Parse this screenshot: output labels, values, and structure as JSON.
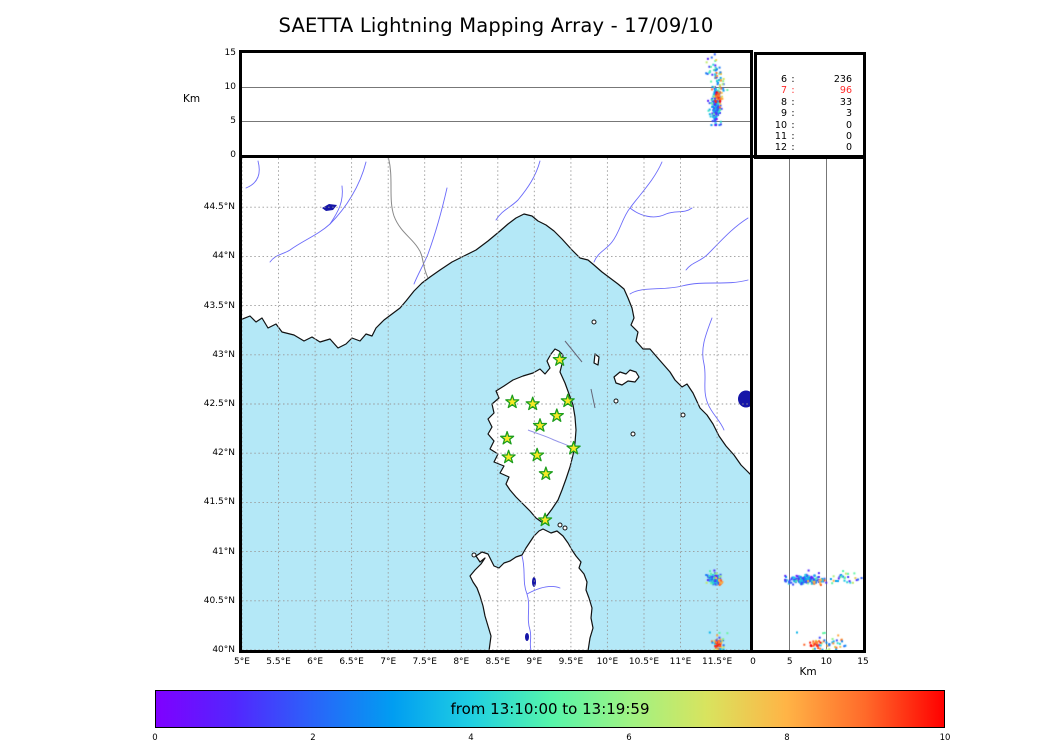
{
  "title": "SAETTA Lightning Mapping Array - 17/09/10",
  "colors": {
    "sea": "#b4e8f7",
    "land": "#ffffff",
    "coast": "#111111",
    "river": "#6b6bfa",
    "corsica_river": "#9595e8",
    "admin_border": "#888888",
    "lake": "#1515a8",
    "grid_dashed": "#999999",
    "grid_solid": "#777777",
    "star_fill": "#f7e926",
    "star_edge": "#1d9e1d",
    "stats_highlight": "#ff2a2a"
  },
  "top_panel": {
    "ylabel": "Km",
    "yticks": [
      "15",
      "10",
      "5",
      "0"
    ],
    "ylim": [
      0,
      15
    ]
  },
  "right_panel": {
    "xlabel": "Km",
    "xticks": [
      "0",
      "5",
      "10",
      "15"
    ],
    "xlim": [
      0,
      15
    ]
  },
  "stats_panel": {
    "rows": [
      {
        "label": "6",
        "value": "236"
      },
      {
        "label": "7",
        "value": "96"
      },
      {
        "label": "8",
        "value": "33"
      },
      {
        "label": "9",
        "value": "3"
      },
      {
        "label": "10",
        "value": "0"
      },
      {
        "label": "11",
        "value": "0"
      },
      {
        "label": "12",
        "value": "0"
      }
    ],
    "highlight_row": 1
  },
  "map": {
    "lon_ticks": [
      "5°E",
      "5.5°E",
      "6°E",
      "6.5°E",
      "7°E",
      "7.5°E",
      "8°E",
      "8.5°E",
      "9°E",
      "9.5°E",
      "10°E",
      "10.5°E",
      "11°E",
      "11.5°E"
    ],
    "lat_ticks": [
      "44.5°N",
      "44°N",
      "43.5°N",
      "43°N",
      "42.5°N",
      "42°N",
      "41.5°N",
      "41°N",
      "40.5°N",
      "40°N"
    ],
    "lon_lim": [
      5,
      11.955
    ],
    "lat_lim": [
      40,
      45
    ]
  },
  "colorbar": {
    "label": "from 13:10:00 to 13:19:59",
    "ticks": [
      "0",
      "2",
      "4",
      "6",
      "8",
      "10"
    ],
    "min": 0,
    "max": 10,
    "gradient": [
      [
        0.0,
        "#7f00ff"
      ],
      [
        0.1,
        "#5326fe"
      ],
      [
        0.2,
        "#2a64f9"
      ],
      [
        0.3,
        "#019df1"
      ],
      [
        0.4,
        "#1fcfe2"
      ],
      [
        0.5,
        "#55f5ab"
      ],
      [
        0.6,
        "#9ef384"
      ],
      [
        0.7,
        "#d9e35e"
      ],
      [
        0.8,
        "#ffb446"
      ],
      [
        0.9,
        "#ff6a2a"
      ],
      [
        1.0,
        "#ff0000"
      ]
    ]
  },
  "chart_data": {
    "type": "scatter",
    "title": "SAETTA Lightning Mapping Array - 17/09/10",
    "panels": {
      "top": "longitude vs altitude (0-15 Km)",
      "main": "longitude vs latitude map",
      "right": "altitude (0-15 Km) vs latitude"
    },
    "lon_range": [
      5,
      11.955
    ],
    "lat_range": [
      40,
      45
    ],
    "alt_range_km": [
      0,
      15
    ],
    "color_scale": {
      "label": "from 13:10:00 to 13:19:59",
      "min": 0,
      "max": 10
    },
    "stations": [
      {
        "lon": 9.35,
        "lat": 42.95
      },
      {
        "lon": 8.7,
        "lat": 42.52
      },
      {
        "lon": 8.98,
        "lat": 42.5
      },
      {
        "lon": 9.46,
        "lat": 42.53
      },
      {
        "lon": 9.31,
        "lat": 42.38
      },
      {
        "lon": 9.08,
        "lat": 42.28
      },
      {
        "lon": 8.63,
        "lat": 42.15
      },
      {
        "lon": 9.54,
        "lat": 42.05
      },
      {
        "lon": 8.65,
        "lat": 41.96
      },
      {
        "lon": 9.04,
        "lat": 41.98
      },
      {
        "lon": 9.16,
        "lat": 41.79
      },
      {
        "lon": 9.15,
        "lat": 41.32
      }
    ],
    "clusters": [
      {
        "name": "north-cell-core",
        "count": 170,
        "lon": [
          11.49,
          0.035
        ],
        "lat": [
          40.71,
          0.022
        ],
        "alt": [
          7.2,
          1.4
        ],
        "alt_clip": [
          4.4,
          11.5
        ],
        "t": {
          "type": "gauss",
          "mu": 0.25,
          "sigma": 0.13,
          "clip": [
            0.02,
            0.62
          ]
        }
      },
      {
        "name": "north-cell-upper",
        "count": 26,
        "lon": [
          11.46,
          0.05
        ],
        "lat": [
          40.74,
          0.03
        ],
        "alt": [
          12.8,
          1.1
        ],
        "alt_clip": [
          10.8,
          14.8
        ],
        "t": {
          "type": "uniform",
          "range": [
            0.08,
            0.75
          ]
        }
      },
      {
        "name": "north-cell-orange-arc",
        "count": 12,
        "lon": [
          11.55,
          0.015
        ],
        "lat": [
          40.7,
          0.02
        ],
        "alt": [
          9.2,
          0.9
        ],
        "alt_clip": [
          7.5,
          11.0
        ],
        "t": {
          "type": "gauss",
          "mu": 0.82,
          "sigma": 0.05,
          "clip": [
            0.7,
            0.95
          ]
        }
      },
      {
        "name": "south-cell-scatter",
        "count": 46,
        "lon": [
          11.53,
          0.045
        ],
        "lat": [
          40.08,
          0.05
        ],
        "alt": [
          9.5,
          2.0
        ],
        "alt_clip": [
          6.0,
          14.6
        ],
        "t": {
          "type": "uniform",
          "range": [
            0.15,
            0.95
          ]
        }
      },
      {
        "name": "south-cell-red-core",
        "count": 18,
        "lon": [
          11.52,
          0.02
        ],
        "lat": [
          40.06,
          0.018
        ],
        "alt": [
          8.6,
          0.7
        ],
        "alt_clip": [
          7.0,
          10.5
        ],
        "t": {
          "type": "gauss",
          "mu": 0.92,
          "sigma": 0.06,
          "clip": [
            0.75,
            1.0
          ]
        }
      }
    ]
  }
}
